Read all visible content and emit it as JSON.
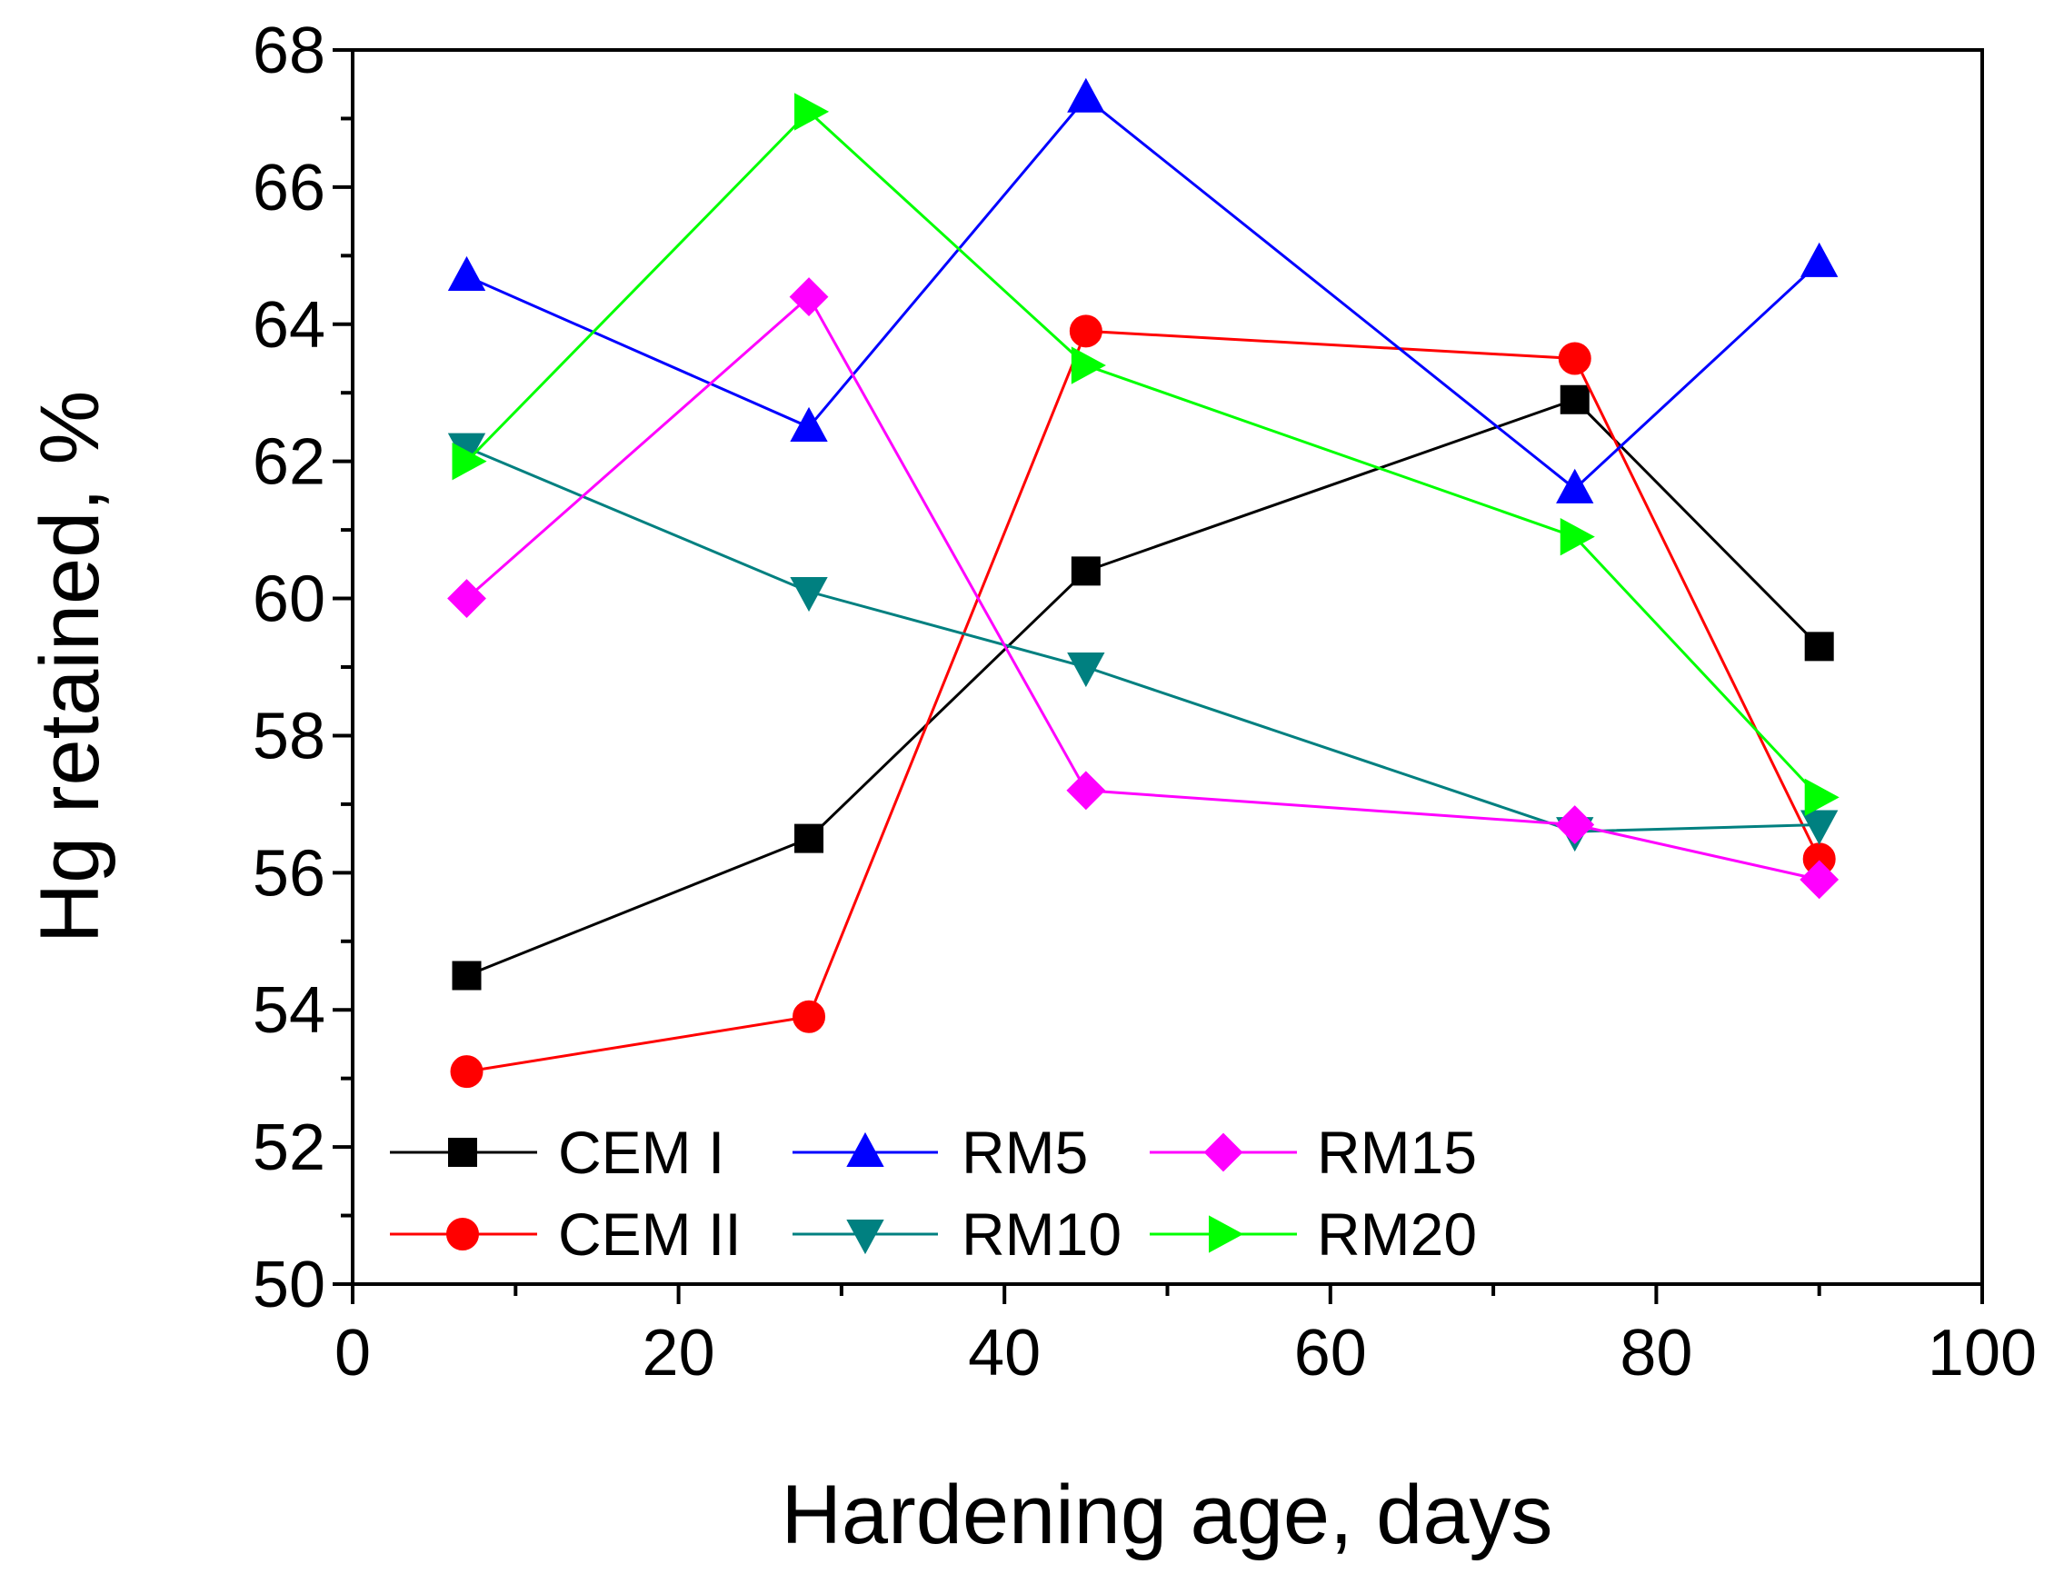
{
  "chart_data": {
    "type": "line",
    "title": "",
    "xlabel": "Hardening age, days",
    "ylabel": "Hg retained, %",
    "xlim": [
      0,
      100
    ],
    "ylim": [
      50,
      68
    ],
    "xticks": [
      0,
      20,
      40,
      60,
      80,
      100
    ],
    "yticks": [
      50,
      52,
      54,
      56,
      58,
      60,
      62,
      64,
      66,
      68
    ],
    "grid": false,
    "legend_position": "bottom-left",
    "x": [
      7,
      28,
      45,
      75,
      90
    ],
    "series": [
      {
        "name": "CEM I",
        "color": "#000000",
        "marker": "square",
        "values": [
          54.5,
          56.5,
          60.4,
          62.9,
          59.3
        ]
      },
      {
        "name": "CEM II",
        "color": "#ff0000",
        "marker": "circle",
        "values": [
          53.1,
          53.9,
          63.9,
          63.5,
          56.2
        ]
      },
      {
        "name": "RM5",
        "color": "#0000ff",
        "marker": "triangle-up",
        "values": [
          64.7,
          62.5,
          67.3,
          61.6,
          64.9
        ]
      },
      {
        "name": "RM10",
        "color": "#008080",
        "marker": "triangle-down",
        "values": [
          62.2,
          60.1,
          59.0,
          56.6,
          56.7
        ]
      },
      {
        "name": "RM15",
        "color": "#ff00ff",
        "marker": "diamond",
        "values": [
          60.0,
          64.4,
          57.2,
          56.7,
          55.9
        ]
      },
      {
        "name": "RM20",
        "color": "#00ff00",
        "marker": "triangle-right",
        "values": [
          62.0,
          67.1,
          63.4,
          60.9,
          57.1
        ]
      }
    ]
  }
}
